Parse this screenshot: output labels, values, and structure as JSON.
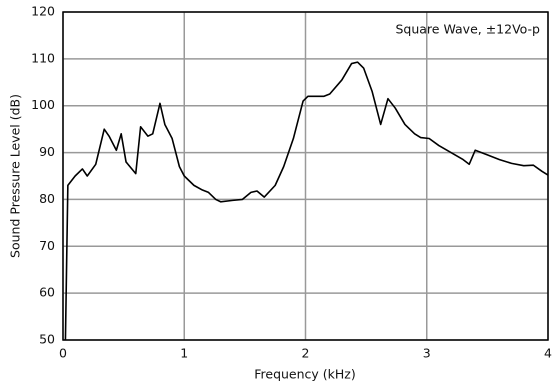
{
  "chart_data": {
    "type": "line",
    "annotation": "Square Wave, ±12Vo-p",
    "xlabel": "Frequency (kHz)",
    "ylabel": "Sound Pressure Level (dB)",
    "x": [
      0.02,
      0.04,
      0.1,
      0.16,
      0.2,
      0.27,
      0.34,
      0.38,
      0.44,
      0.48,
      0.52,
      0.6,
      0.64,
      0.7,
      0.74,
      0.8,
      0.84,
      0.9,
      0.96,
      1.0,
      1.08,
      1.15,
      1.2,
      1.26,
      1.3,
      1.4,
      1.48,
      1.55,
      1.6,
      1.66,
      1.75,
      1.82,
      1.9,
      1.98,
      2.02,
      2.15,
      2.2,
      2.3,
      2.38,
      2.43,
      2.48,
      2.55,
      2.62,
      2.68,
      2.74,
      2.82,
      2.9,
      2.95,
      3.02,
      3.1,
      3.2,
      3.3,
      3.35,
      3.4,
      3.5,
      3.6,
      3.7,
      3.8,
      3.88,
      3.95,
      4.0
    ],
    "values": [
      50,
      83,
      85,
      86.5,
      85,
      87.5,
      95,
      93.5,
      90.5,
      94,
      88,
      85.5,
      95.5,
      93.5,
      94,
      100.5,
      96,
      93,
      87,
      85,
      83,
      82,
      81.5,
      80,
      79.5,
      79.8,
      80,
      81.5,
      81.8,
      80.5,
      83,
      87,
      93,
      101,
      102,
      102,
      102.5,
      105.5,
      109,
      109.3,
      108,
      103,
      96,
      101.5,
      99.5,
      96,
      94,
      93.2,
      93,
      91.5,
      90,
      88.5,
      87.5,
      90.5,
      89.5,
      88.5,
      87.7,
      87.2,
      87.3,
      86,
      85.2
    ],
    "color": "#000000",
    "xlim": [
      0,
      4
    ],
    "xticks": [
      0,
      1,
      2,
      3,
      4
    ],
    "ylim": [
      50,
      120
    ],
    "yticks": [
      50,
      60,
      70,
      80,
      90,
      100,
      110,
      120
    ],
    "grid": true
  }
}
